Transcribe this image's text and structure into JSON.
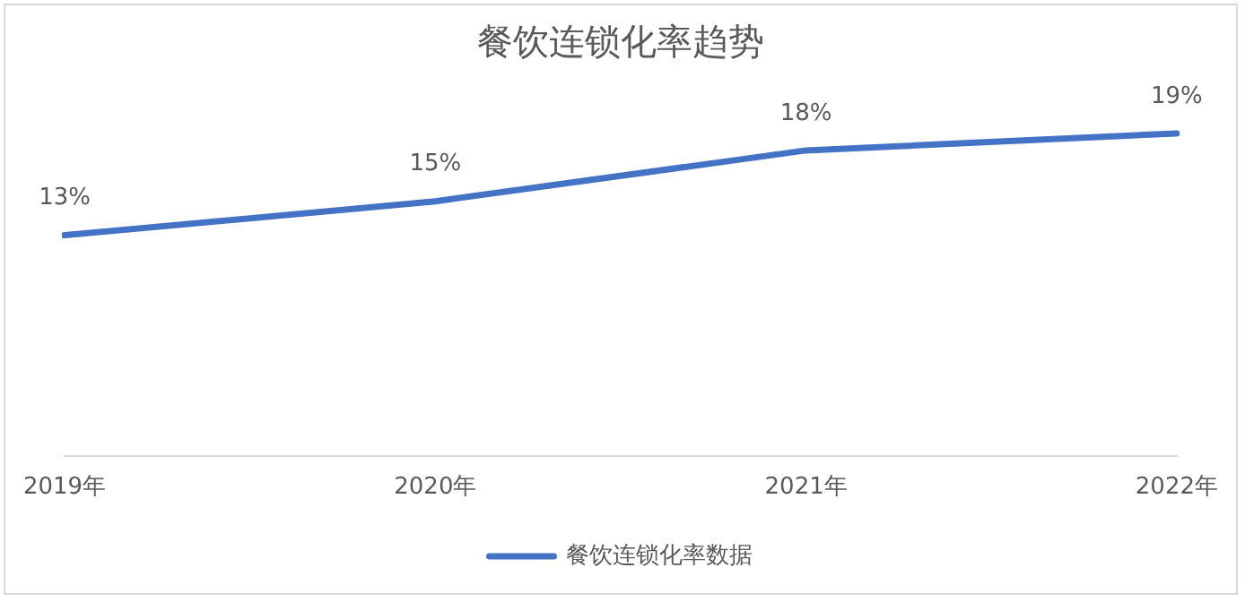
{
  "chart_data": {
    "type": "line",
    "title": "餐饮连锁化率趋势",
    "categories": [
      "2019年",
      "2020年",
      "2021年",
      "2022年"
    ],
    "series": [
      {
        "name": "餐饮连锁化率数据",
        "color": "#4472c4",
        "values": [
          13,
          15,
          18,
          19
        ],
        "value_labels": [
          "13%",
          "15%",
          "18%",
          "19%"
        ]
      }
    ],
    "grid": false,
    "legend": "bottom",
    "marker": "none",
    "line_style": "solid"
  }
}
